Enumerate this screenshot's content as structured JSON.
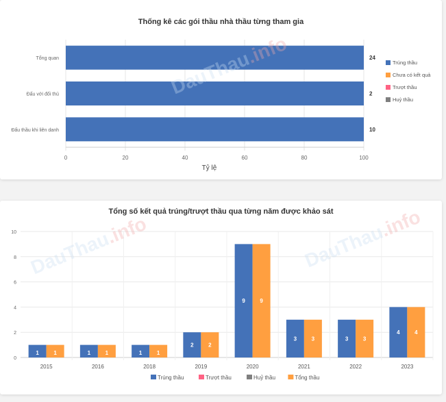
{
  "chart_data": [
    {
      "type": "bar",
      "orientation": "horizontal",
      "title": "Thống kê các gói thầu nhà thầu từng tham gia",
      "xlabel": "Tỷ lệ",
      "ylabel": "",
      "xlim": [
        0,
        100
      ],
      "xticks": [
        "0",
        "20",
        "40",
        "60",
        "80",
        "100"
      ],
      "categories": [
        "Tổng quan",
        "Đấu với đối thủ",
        "Đấu thầu khi liên danh"
      ],
      "counts": [
        "24",
        "2",
        "10"
      ],
      "series": [
        {
          "name": "Trúng thầu",
          "color": "#4472b8",
          "values": [
            100,
            100,
            100
          ]
        },
        {
          "name": "Chưa có kết quả",
          "color": "#ff9f40",
          "values": [
            0,
            0,
            0
          ]
        },
        {
          "name": "Trượt thầu",
          "color": "#ff6384",
          "values": [
            0,
            0,
            0
          ]
        },
        {
          "name": "Huỷ thầu",
          "color": "#7f7f7f",
          "values": [
            0,
            0,
            0
          ]
        }
      ],
      "legend_position": "right",
      "grid": true
    },
    {
      "type": "bar",
      "title": "Tổng số kết quả trúng/trượt thầu qua từng năm được khảo sát",
      "xlabel": "",
      "ylabel": "",
      "ylim": [
        0,
        10
      ],
      "yticks": [
        "0",
        "2",
        "4",
        "6",
        "8",
        "10"
      ],
      "categories": [
        "2015",
        "2016",
        "2018",
        "2019",
        "2020",
        "2021",
        "2022",
        "2023"
      ],
      "series": [
        {
          "name": "Trúng thầu",
          "color": "#4472b8",
          "values": [
            1,
            1,
            1,
            2,
            9,
            3,
            3,
            4
          ]
        },
        {
          "name": "Trượt thầu",
          "color": "#ff6384",
          "values": [
            0,
            0,
            0,
            0,
            0,
            0,
            0,
            0
          ]
        },
        {
          "name": "Huỷ thầu",
          "color": "#7f7f7f",
          "values": [
            0,
            0,
            0,
            0,
            0,
            0,
            0,
            0
          ]
        },
        {
          "name": "Tổng thầu",
          "color": "#ff9f40",
          "values": [
            1,
            1,
            1,
            2,
            9,
            3,
            3,
            4
          ]
        }
      ],
      "legend_position": "bottom",
      "grid": true
    }
  ],
  "watermark": {
    "part1": "DauThau",
    "part2": ".info"
  }
}
